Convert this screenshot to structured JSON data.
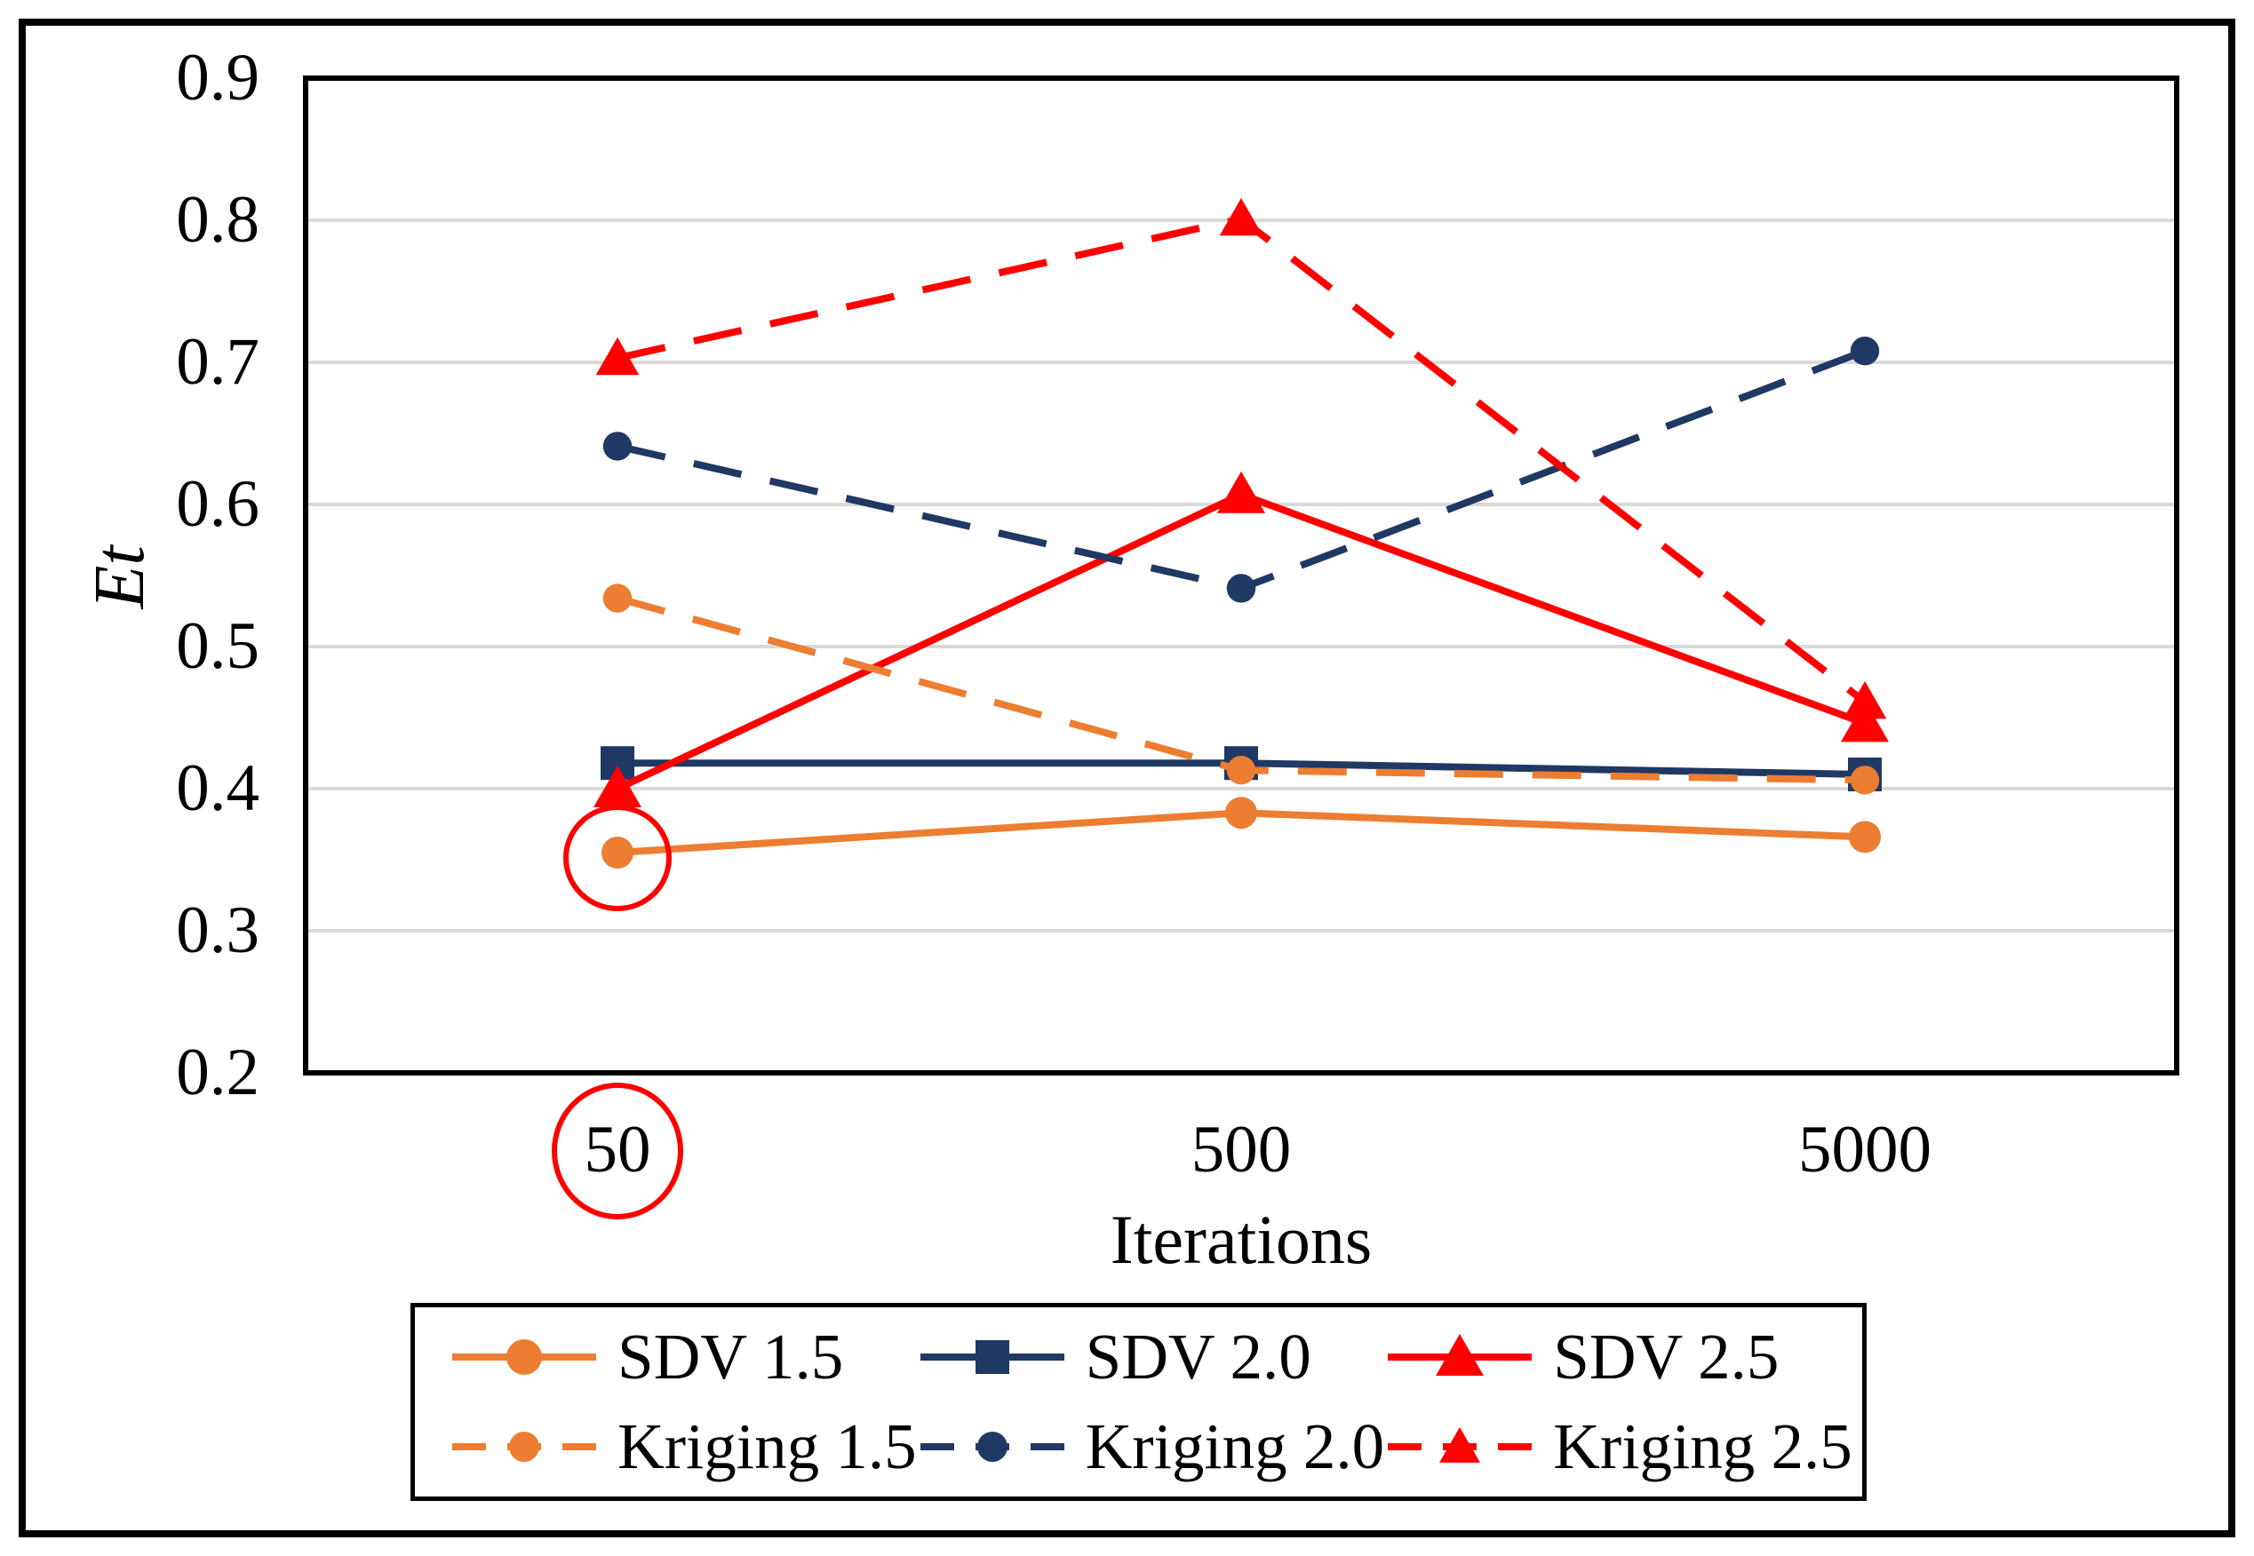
{
  "chart_data": {
    "type": "line",
    "title": "",
    "xlabel": "Iterations",
    "ylabel": "Et",
    "x_categories": [
      "50",
      "500",
      "5000"
    ],
    "y_ticks": [
      "0.9",
      "0.8",
      "0.7",
      "0.6",
      "0.5",
      "0.4",
      "0.3",
      "0.2"
    ],
    "ylim": [
      0.2,
      0.9
    ],
    "grid": "horizontal",
    "legend_position": "bottom",
    "series": [
      {
        "name": "SDV 1.5",
        "color": "#ED7D31",
        "dash": "solid",
        "marker": "circle",
        "values": [
          0.355,
          0.383,
          0.366
        ]
      },
      {
        "name": "SDV 2.0",
        "color": "#1F3864",
        "dash": "solid",
        "marker": "square",
        "values": [
          0.418,
          0.418,
          0.41
        ]
      },
      {
        "name": "SDV 2.5",
        "color": "#FF0000",
        "dash": "solid",
        "marker": "triangle",
        "values": [
          0.4,
          0.607,
          0.446
        ]
      },
      {
        "name": "Kriging 1.5",
        "color": "#ED7D31",
        "dash": "dashed",
        "marker": "circle",
        "values": [
          0.534,
          0.413,
          0.406
        ]
      },
      {
        "name": "Kriging 2.0",
        "color": "#1F3864",
        "dash": "dashed",
        "marker": "circle",
        "values": [
          0.641,
          0.541,
          0.708
        ]
      },
      {
        "name": "Kriging 2.5",
        "color": "#FF0000",
        "dash": "dashed",
        "marker": "triangle",
        "values": [
          0.703,
          0.801,
          0.461
        ]
      }
    ],
    "annotations": [
      {
        "shape": "ellipse",
        "color": "#FF0000",
        "around": "data-point",
        "series": "SDV 1.5",
        "category": "50",
        "rx": 58,
        "ry": 57,
        "dy": 6
      },
      {
        "shape": "ellipse",
        "color": "#FF0000",
        "around": "x-tick-label",
        "series": "",
        "category": "50",
        "rx": 71,
        "ry": 74,
        "dy": 0
      }
    ]
  },
  "colors": {
    "background": "#FFFFFF",
    "grid": "#D9D9D9",
    "axis_box": "#000000",
    "outer_border": "#000000",
    "text": "#000000"
  }
}
